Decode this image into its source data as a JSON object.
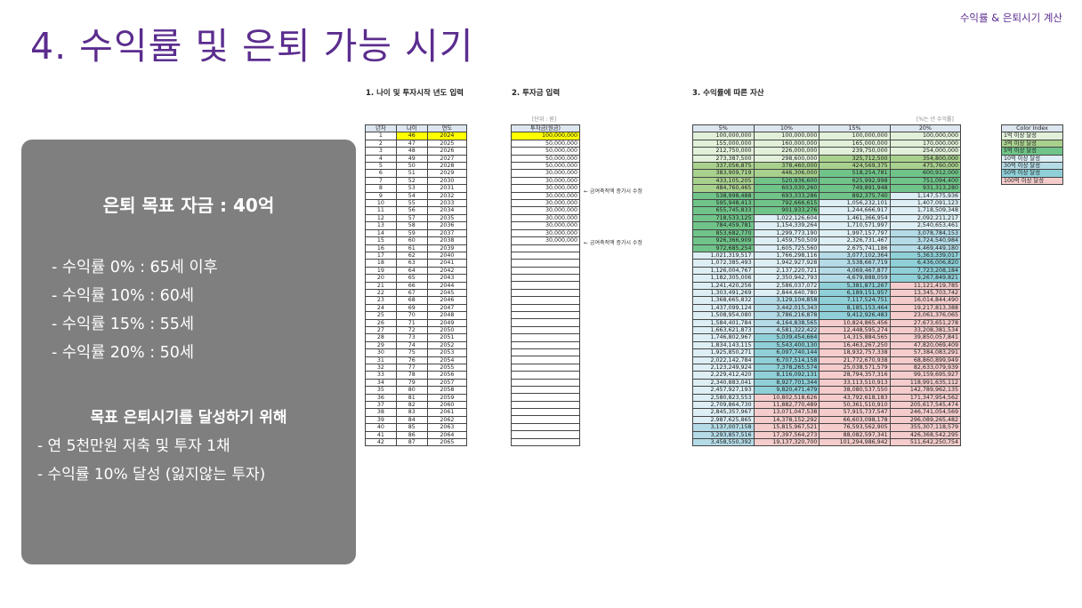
{
  "header": {
    "subtitle": "수익률 & 은퇴시기 계산",
    "title": "4. 수익률 및 은퇴 가능 시기"
  },
  "panel": {
    "goal": "은퇴 목표 자금 : 40억",
    "items": [
      "- 수익률   0% : 65세 이후",
      "- 수익률 10% : 60세",
      "- 수익률 15% : 55세",
      "- 수익률 20% : 50세"
    ],
    "achieve_title": "목표 은퇴시기를 달성하기 위해",
    "achieve_items": [
      "- 연 5천만원 저축 및 투자 1채",
      "- 수익률 10% 달성 (잃지않는 투자)"
    ]
  },
  "sections": {
    "s1": "1. 나이 및 투자시작 년도 입력",
    "s2": "2. 투자금 입력",
    "s3": "3. 수익률에 따른 자산"
  },
  "units": {
    "inv": "[단위 : 원]",
    "rate": "[%는 년 수익률]"
  },
  "age_table": {
    "headers": [
      "년차",
      "나이",
      "연도"
    ],
    "rows": [
      [
        "1",
        "46",
        "2024"
      ],
      [
        "2",
        "47",
        "2025"
      ],
      [
        "3",
        "48",
        "2026"
      ],
      [
        "4",
        "49",
        "2027"
      ],
      [
        "5",
        "50",
        "2028"
      ],
      [
        "6",
        "51",
        "2029"
      ],
      [
        "7",
        "52",
        "2030"
      ],
      [
        "8",
        "53",
        "2031"
      ],
      [
        "9",
        "54",
        "2032"
      ],
      [
        "10",
        "55",
        "2033"
      ],
      [
        "11",
        "56",
        "2034"
      ],
      [
        "12",
        "57",
        "2035"
      ],
      [
        "13",
        "58",
        "2036"
      ],
      [
        "14",
        "59",
        "2037"
      ],
      [
        "15",
        "60",
        "2038"
      ],
      [
        "16",
        "61",
        "2039"
      ],
      [
        "17",
        "62",
        "2040"
      ],
      [
        "18",
        "63",
        "2041"
      ],
      [
        "19",
        "64",
        "2042"
      ],
      [
        "20",
        "65",
        "2043"
      ],
      [
        "21",
        "66",
        "2044"
      ],
      [
        "22",
        "67",
        "2045"
      ],
      [
        "23",
        "68",
        "2046"
      ],
      [
        "24",
        "69",
        "2047"
      ],
      [
        "25",
        "70",
        "2048"
      ],
      [
        "26",
        "71",
        "2049"
      ],
      [
        "27",
        "72",
        "2050"
      ],
      [
        "28",
        "73",
        "2051"
      ],
      [
        "29",
        "74",
        "2052"
      ],
      [
        "30",
        "75",
        "2053"
      ],
      [
        "31",
        "76",
        "2054"
      ],
      [
        "32",
        "77",
        "2055"
      ],
      [
        "33",
        "78",
        "2056"
      ],
      [
        "34",
        "79",
        "2057"
      ],
      [
        "35",
        "80",
        "2058"
      ],
      [
        "36",
        "81",
        "2059"
      ],
      [
        "37",
        "82",
        "2060"
      ],
      [
        "38",
        "83",
        "2061"
      ],
      [
        "39",
        "84",
        "2062"
      ],
      [
        "40",
        "85",
        "2063"
      ],
      [
        "41",
        "86",
        "2064"
      ],
      [
        "42",
        "87",
        "2065"
      ]
    ]
  },
  "invest_table": {
    "header": "투자금(원금)",
    "values": [
      "100,000,000",
      "50,000,000",
      "50,000,000",
      "50,000,000",
      "50,000,000",
      "30,000,000",
      "30,000,000",
      "30,000,000",
      "30,000,000",
      "30,000,000",
      "30,000,000",
      "30,000,000",
      "30,000,000",
      "30,000,000",
      "30,000,000",
      "",
      "",
      "",
      "",
      "",
      "",
      "",
      "",
      "",
      "",
      "",
      "",
      "",
      "",
      "",
      "",
      "",
      "",
      "",
      "",
      "",
      "",
      "",
      "",
      "",
      "",
      ""
    ],
    "notes": [
      "← 금여축적액 증가시 수정",
      "← 금여축적액 증가시 수정"
    ]
  },
  "assets_table": {
    "headers": [
      "5%",
      "10%",
      "15%",
      "20%"
    ],
    "rows": [
      [
        "100,000,000",
        "100,000,000",
        "100,000,000",
        "100,000,000"
      ],
      [
        "155,000,000",
        "160,000,000",
        "165,000,000",
        "170,000,000"
      ],
      [
        "212,750,000",
        "226,000,000",
        "239,750,000",
        "254,000,000"
      ],
      [
        "273,387,500",
        "298,600,000",
        "325,712,500",
        "354,800,000"
      ],
      [
        "337,056,875",
        "378,460,000",
        "424,569,375",
        "475,760,000"
      ],
      [
        "383,909,719",
        "446,306,000",
        "518,254,781",
        "600,912,000"
      ],
      [
        "433,105,205",
        "520,936,600",
        "625,992,998",
        "751,094,400"
      ],
      [
        "484,760,465",
        "603,030,260",
        "749,891,948",
        "931,313,280"
      ],
      [
        "538,998,488",
        "693,333,286",
        "892,375,740",
        "1,147,575,936"
      ],
      [
        "595,948,413",
        "792,666,615",
        "1,056,232,101",
        "1,407,091,123"
      ],
      [
        "655,745,833",
        "901,933,276",
        "1,244,666,917",
        "1,718,509,348"
      ],
      [
        "718,533,125",
        "1,022,126,604",
        "1,461,366,954",
        "2,092,211,217"
      ],
      [
        "784,459,781",
        "1,154,339,264",
        "1,710,571,997",
        "2,540,653,461"
      ],
      [
        "853,682,770",
        "1,299,773,190",
        "1,997,157,797",
        "3,078,784,153"
      ],
      [
        "926,366,909",
        "1,459,750,509",
        "2,326,731,467",
        "3,724,540,984"
      ],
      [
        "972,685,254",
        "1,605,725,560",
        "2,675,741,186",
        "4,469,449,180"
      ],
      [
        "1,021,319,517",
        "1,766,298,116",
        "3,077,102,364",
        "5,363,339,017"
      ],
      [
        "1,072,385,493",
        "1,942,927,928",
        "3,538,667,719",
        "6,436,006,820"
      ],
      [
        "1,126,004,767",
        "2,137,220,721",
        "4,069,467,877",
        "7,723,208,184"
      ],
      [
        "1,182,305,006",
        "2,350,942,793",
        "4,679,888,059",
        "9,267,849,821"
      ],
      [
        "1,241,420,256",
        "2,586,037,072",
        "5,381,871,267",
        "11,121,419,785"
      ],
      [
        "1,303,491,269",
        "2,844,640,780",
        "6,189,151,957",
        "13,345,703,742"
      ],
      [
        "1,368,665,832",
        "3,129,104,858",
        "7,117,524,751",
        "16,014,844,490"
      ],
      [
        "1,437,099,124",
        "3,442,015,343",
        "8,185,153,464",
        "19,217,813,388"
      ],
      [
        "1,508,954,080",
        "3,786,216,878",
        "9,412,926,483",
        "23,061,376,065"
      ],
      [
        "1,584,401,784",
        "4,164,838,565",
        "10,824,865,456",
        "27,673,651,278"
      ],
      [
        "1,663,621,873",
        "4,581,322,422",
        "12,448,595,274",
        "33,208,381,534"
      ],
      [
        "1,746,802,967",
        "5,039,454,664",
        "14,315,884,565",
        "39,850,057,841"
      ],
      [
        "1,834,143,115",
        "5,543,400,130",
        "16,463,267,250",
        "47,820,069,409"
      ],
      [
        "1,925,850,271",
        "6,097,740,144",
        "18,932,757,338",
        "57,384,083,291"
      ],
      [
        "2,022,142,784",
        "6,707,514,158",
        "21,772,670,938",
        "68,860,899,949"
      ],
      [
        "2,123,249,924",
        "7,378,265,574",
        "25,038,571,579",
        "82,633,079,939"
      ],
      [
        "2,229,412,420",
        "8,116,092,131",
        "28,794,357,316",
        "99,159,695,927"
      ],
      [
        "2,340,883,041",
        "8,927,701,344",
        "33,113,510,913",
        "118,991,635,112"
      ],
      [
        "2,457,927,193",
        "9,820,471,479",
        "38,080,537,550",
        "142,789,962,135"
      ],
      [
        "2,580,823,553",
        "10,802,518,626",
        "43,792,618,183",
        "171,347,954,562"
      ],
      [
        "2,709,864,730",
        "11,882,770,489",
        "50,361,510,910",
        "205,617,545,474"
      ],
      [
        "2,845,357,967",
        "13,071,047,538",
        "57,915,737,547",
        "246,741,054,569"
      ],
      [
        "2,987,625,865",
        "14,378,152,292",
        "66,603,098,178",
        "296,089,265,482"
      ],
      [
        "3,137,007,158",
        "15,815,967,521",
        "76,593,562,905",
        "355,307,118,579"
      ],
      [
        "3,293,857,516",
        "17,397,564,273",
        "88,082,597,341",
        "426,368,542,295"
      ],
      [
        "3,458,550,392",
        "19,137,320,700",
        "101,294,986,942",
        "511,642,250,754"
      ]
    ]
  },
  "color_index": {
    "header": "Color Index",
    "items": [
      "1억 이상 달성",
      "3억 이상 달성",
      "5억 이상 달성",
      "10억 이상 달성",
      "30억 이상 달성",
      "50억 이상 달성",
      "100억 이상 달성"
    ]
  },
  "colors": {
    "title": "#5b2d8e",
    "panel": "#7f7f7f",
    "highlight": "#ffff00"
  }
}
